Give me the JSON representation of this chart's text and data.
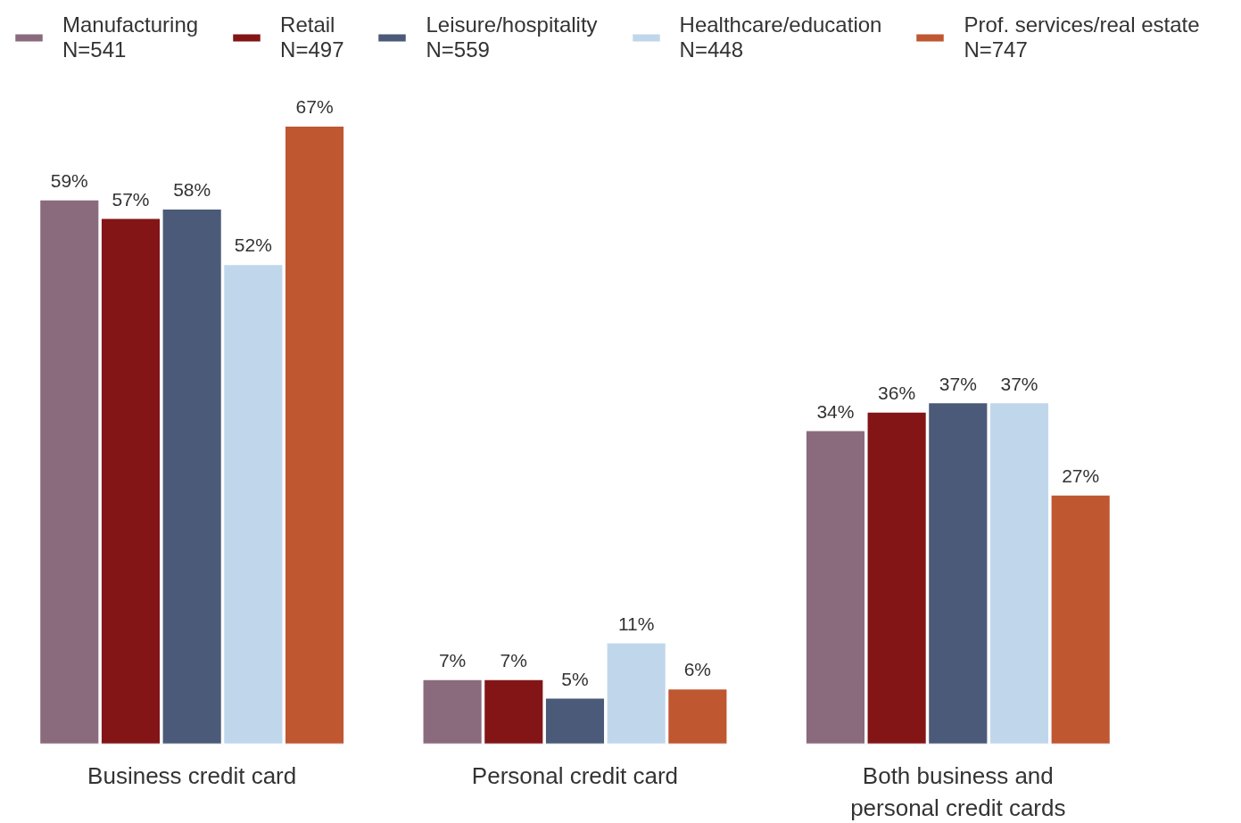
{
  "chart_data": {
    "type": "bar",
    "categories": [
      "Business credit card",
      "Personal credit card",
      "Both business and personal credit cards"
    ],
    "series": [
      {
        "name": "Manufacturing\nN=541",
        "color": "#8a6b7e",
        "values": [
          59,
          7,
          34
        ],
        "value_labels": [
          "59%",
          "7%",
          "34%"
        ]
      },
      {
        "name": "Retail\nN=497",
        "color": "#831517",
        "values": [
          57,
          7,
          36
        ],
        "value_labels": [
          "57%",
          "7%",
          "36%"
        ]
      },
      {
        "name": "Leisure/hospitality\nN=559",
        "color": "#4b5a78",
        "values": [
          58,
          5,
          37
        ],
        "value_labels": [
          "58%",
          "5%",
          "37%"
        ]
      },
      {
        "name": "Healthcare/education\nN=448",
        "color": "#c0d7eb",
        "values": [
          52,
          11,
          37
        ],
        "value_labels": [
          "52%",
          "11%",
          "37%"
        ]
      },
      {
        "name": "Prof. services/real estate\nN=747",
        "color": "#bf5731",
        "values": [
          67,
          6,
          27
        ],
        "value_labels": [
          "67%",
          "6%",
          "27%"
        ]
      }
    ],
    "legend": "top",
    "tick_labels": "x"
  }
}
